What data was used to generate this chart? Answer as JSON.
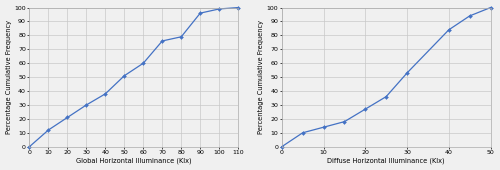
{
  "chart1": {
    "x": [
      0,
      10,
      20,
      30,
      40,
      50,
      60,
      70,
      80,
      90,
      100,
      110
    ],
    "y": [
      0,
      12,
      21,
      30,
      38,
      51,
      60,
      76,
      79,
      96,
      99,
      100
    ],
    "xlabel": "Global Horizontal Illuminance (Klx)",
    "ylabel": "Percentage Cumulative Frequency",
    "xlim": [
      0,
      110
    ],
    "ylim": [
      0,
      100
    ],
    "xticks": [
      0,
      10,
      20,
      30,
      40,
      50,
      60,
      70,
      80,
      90,
      100,
      110
    ],
    "yticks": [
      0,
      10,
      20,
      30,
      40,
      50,
      60,
      70,
      80,
      90,
      100
    ]
  },
  "chart2": {
    "x": [
      0,
      5,
      10,
      15,
      20,
      25,
      30,
      40,
      45,
      50
    ],
    "y": [
      0,
      10,
      14,
      18,
      27,
      36,
      53,
      84,
      94,
      100
    ],
    "xlabel": "Diffuse Horizontal Illuminance (Klx)",
    "ylabel": "Percentage Cumulative Frequency",
    "xlim": [
      0,
      50
    ],
    "ylim": [
      0,
      100
    ],
    "xticks": [
      0,
      10,
      20,
      30,
      40,
      50
    ],
    "yticks": [
      0,
      10,
      20,
      30,
      40,
      50,
      60,
      70,
      80,
      90,
      100
    ]
  },
  "line_color": "#4472C4",
  "marker": "D",
  "marker_size": 2.0,
  "line_width": 0.9,
  "grid_color": "#c8c8c8",
  "bg_color": "#f0f0f0",
  "plot_bg_color": "#f0f0f0",
  "tick_fontsize": 4.5,
  "label_fontsize": 4.8,
  "spine_color": "#aaaaaa"
}
